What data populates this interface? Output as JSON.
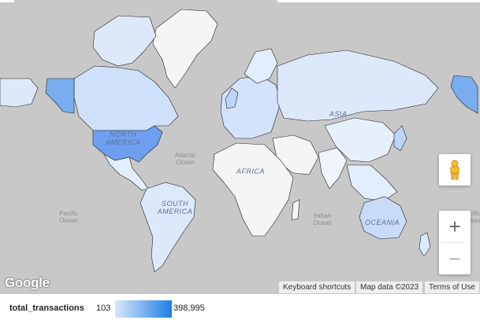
{
  "map": {
    "ocean_color": "#c8c8c8",
    "no_data_color": "#f5f5f5",
    "continent_labels": [
      "NORTH AMERICA",
      "SOUTH AMERICA",
      "AFRICA",
      "ASIA",
      "OCEANIA"
    ],
    "ocean_labels": [
      "Atlantic Ocean",
      "Pacific Ocean",
      "Indian Ocean",
      "Pacific Ocean"
    ],
    "controls": {
      "pegman_icon": "pegman-icon",
      "zoom_in": "+",
      "zoom_out": "−"
    }
  },
  "branding": {
    "logo_text": "Google"
  },
  "attribution": {
    "keyboard_shortcuts": "Keyboard shortcuts",
    "map_data": "Map data ©2023",
    "terms": "Terms of Use"
  },
  "legend": {
    "metric": "total_transactions",
    "min_label": "103",
    "max_label": "398,995",
    "min_color": "#d8e8fc",
    "max_color": "#1f7de6"
  }
}
